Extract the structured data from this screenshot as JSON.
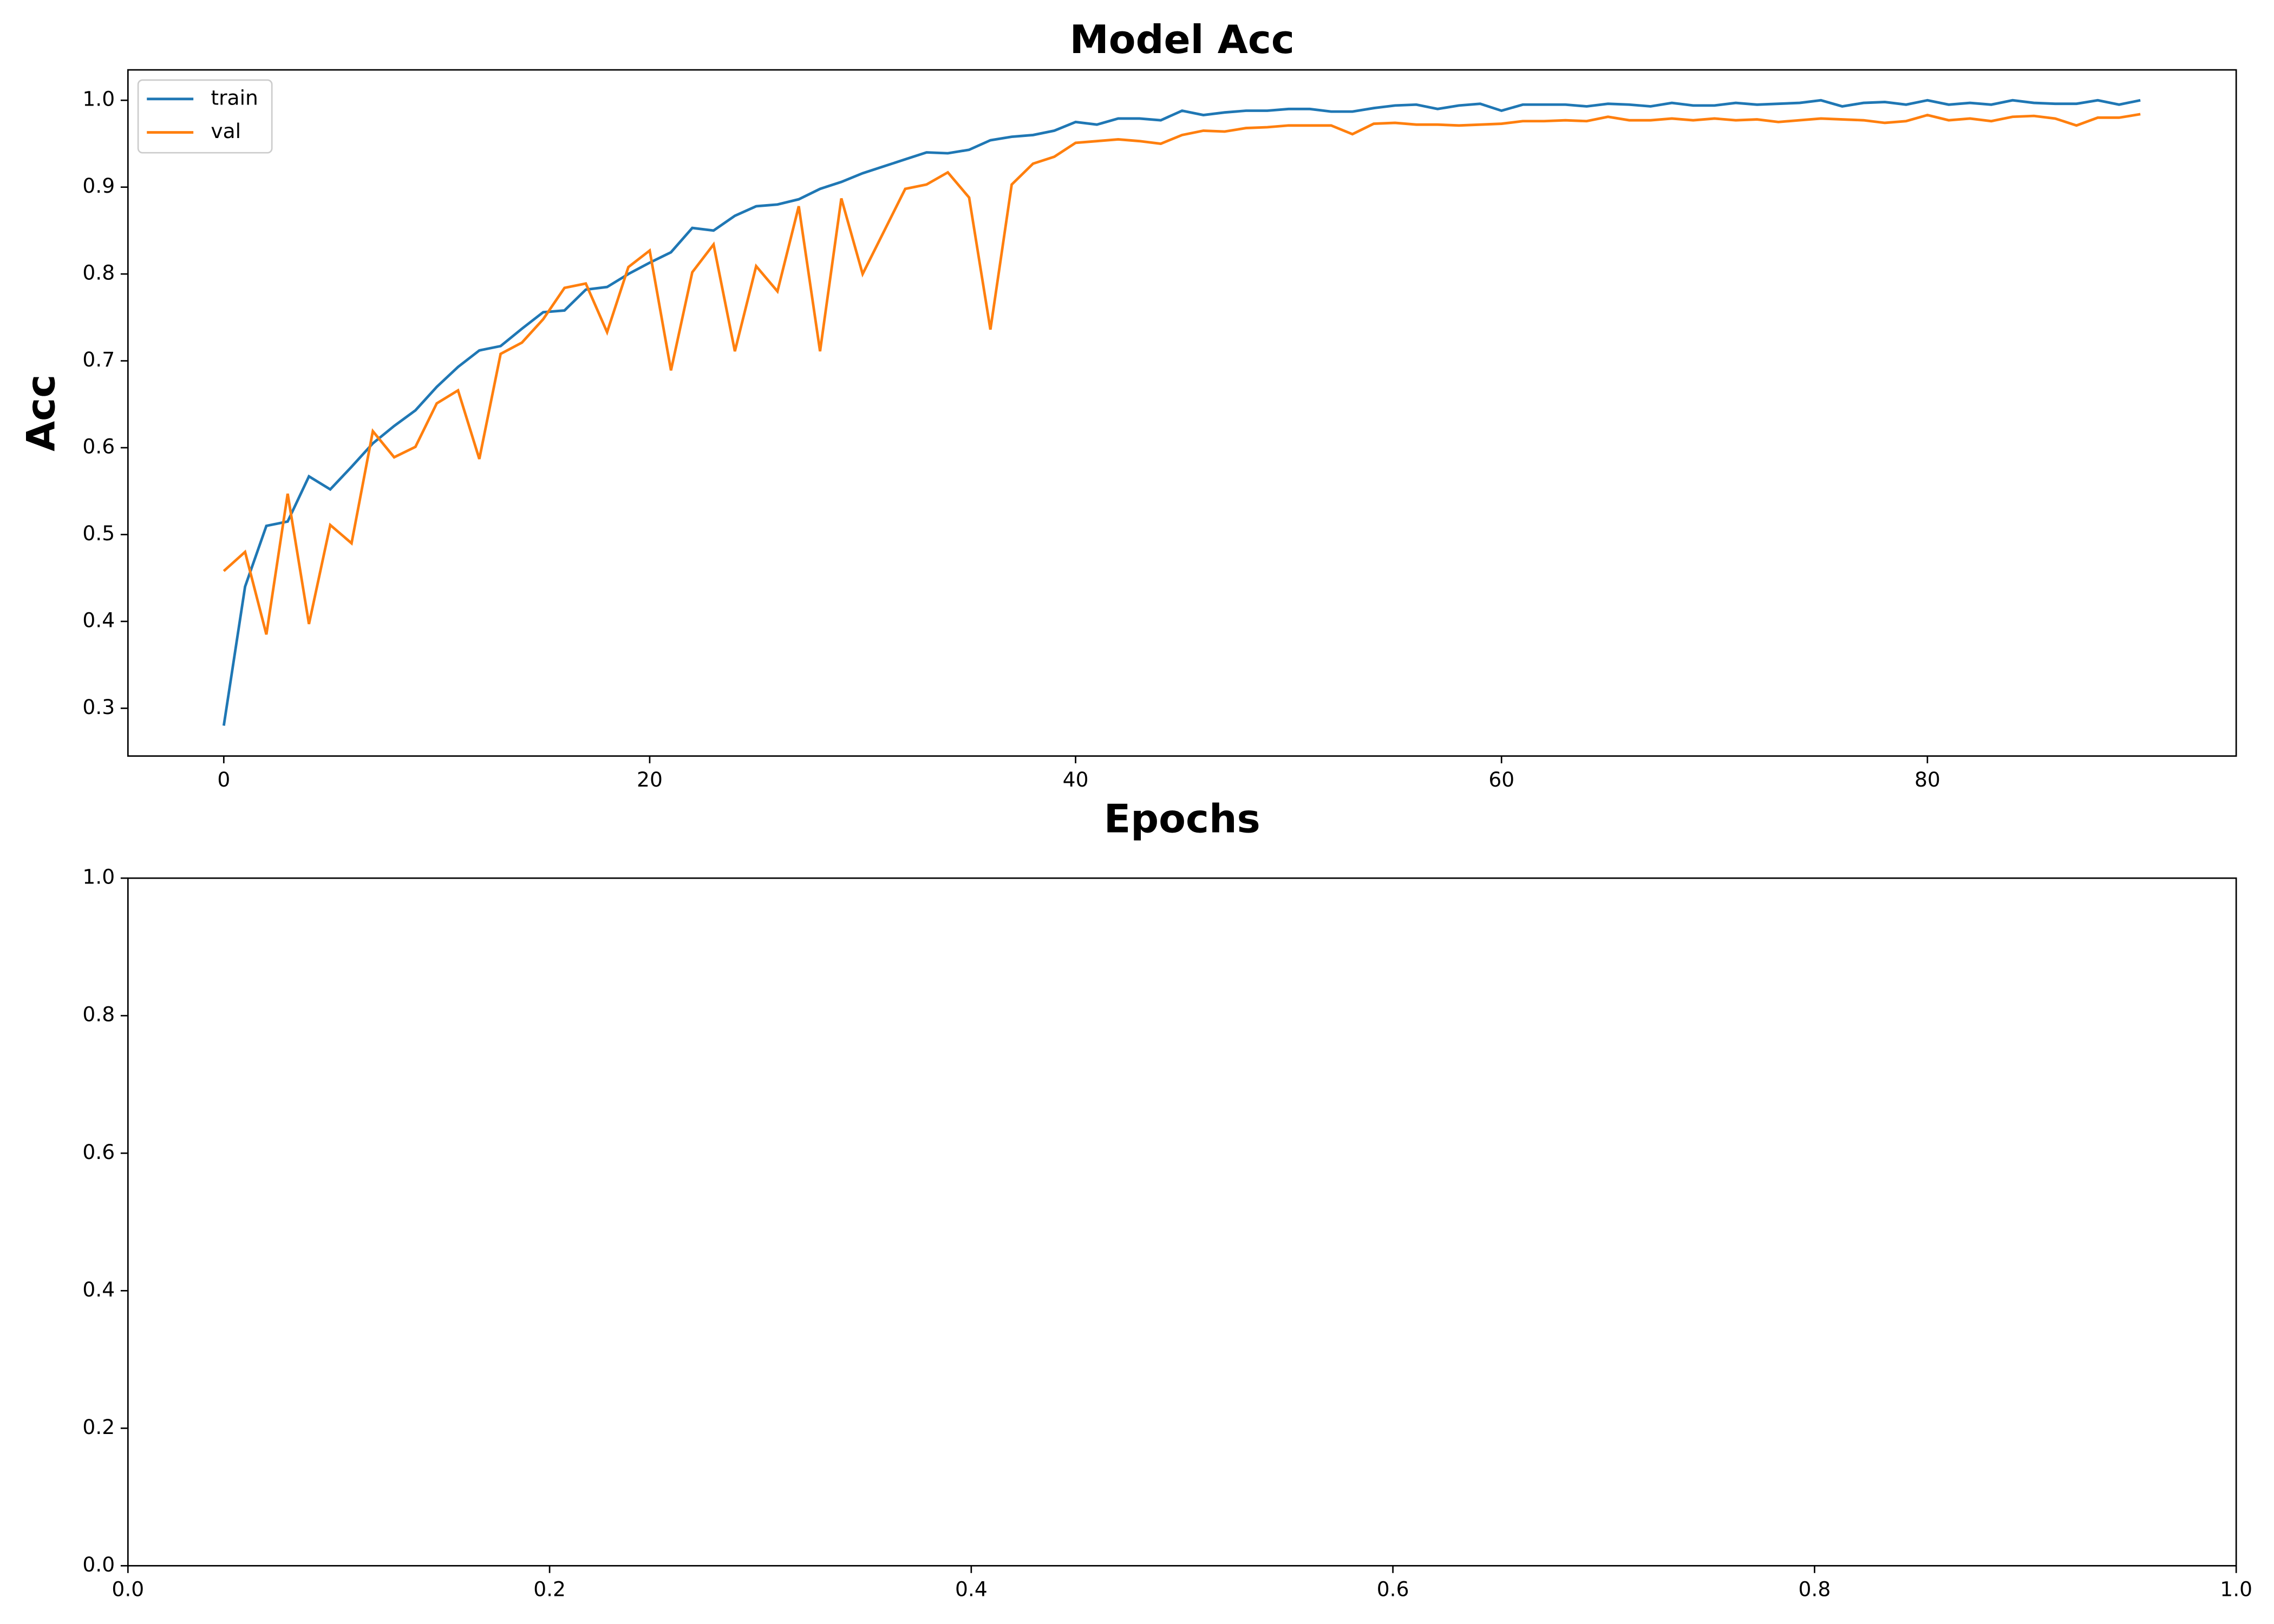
{
  "chart_data": [
    {
      "type": "line",
      "title": "Model Acc",
      "x_label": "Epochs",
      "y_label": "Acc",
      "x": [
        0,
        1,
        2,
        3,
        4,
        5,
        6,
        7,
        8,
        9,
        10,
        11,
        12,
        13,
        14,
        15,
        16,
        17,
        18,
        19,
        20,
        21,
        22,
        23,
        24,
        25,
        26,
        27,
        28,
        29,
        30,
        31,
        32,
        33,
        34,
        35,
        36,
        37,
        38,
        39,
        40,
        41,
        42,
        43,
        44,
        45,
        46,
        47,
        48,
        49,
        50,
        51,
        52,
        53,
        54,
        55,
        56,
        57,
        58,
        59,
        60,
        61,
        62,
        63,
        64,
        65,
        66,
        67,
        68,
        69,
        70,
        71,
        72,
        73,
        74,
        75,
        76,
        77,
        78,
        79,
        80,
        81,
        82,
        83,
        84,
        85,
        86,
        87,
        88,
        89,
        90
      ],
      "series": [
        {
          "name": "train",
          "color": "#1f77b4",
          "values": [
            0.28,
            0.44,
            0.51,
            0.515,
            0.567,
            0.552,
            0.578,
            0.605,
            0.625,
            0.643,
            0.67,
            0.693,
            0.712,
            0.717,
            0.737,
            0.756,
            0.758,
            0.782,
            0.785,
            0.8,
            0.813,
            0.825,
            0.853,
            0.85,
            0.867,
            0.878,
            0.88,
            0.886,
            0.898,
            0.906,
            0.916,
            0.924,
            0.932,
            0.94,
            0.939,
            0.943,
            0.954,
            0.958,
            0.96,
            0.965,
            0.975,
            0.972,
            0.979,
            0.979,
            0.977,
            0.988,
            0.983,
            0.986,
            0.988,
            0.988,
            0.99,
            0.99,
            0.987,
            0.987,
            0.991,
            0.994,
            0.995,
            0.99,
            0.994,
            0.996,
            0.988,
            0.995,
            0.995,
            0.995,
            0.993,
            0.996,
            0.995,
            0.993,
            0.997,
            0.994,
            0.994,
            0.997,
            0.995,
            0.996,
            0.997,
            1.0,
            0.993,
            0.997,
            0.998,
            0.995,
            1.0,
            0.995,
            0.997,
            0.995,
            1.0,
            0.997,
            0.996,
            0.996,
            1.0,
            0.995,
            1.0
          ]
        },
        {
          "name": "val",
          "color": "#ff7f0e",
          "values": [
            0.458,
            0.48,
            0.385,
            0.547,
            0.397,
            0.511,
            0.49,
            0.619,
            0.589,
            0.601,
            0.651,
            0.666,
            0.587,
            0.708,
            0.721,
            0.748,
            0.784,
            0.789,
            0.733,
            0.808,
            0.827,
            0.689,
            0.802,
            0.834,
            0.711,
            0.809,
            0.78,
            0.878,
            0.711,
            0.887,
            0.8,
            0.849,
            0.898,
            0.903,
            0.917,
            0.888,
            0.736,
            0.903,
            0.927,
            0.935,
            0.951,
            0.953,
            0.955,
            0.953,
            0.95,
            0.96,
            0.965,
            0.964,
            0.968,
            0.969,
            0.971,
            0.971,
            0.971,
            0.961,
            0.973,
            0.974,
            0.972,
            0.972,
            0.971,
            0.972,
            0.973,
            0.976,
            0.976,
            0.977,
            0.976,
            0.981,
            0.977,
            0.977,
            0.979,
            0.977,
            0.979,
            0.977,
            0.978,
            0.975,
            0.977,
            0.979,
            0.978,
            0.977,
            0.974,
            0.976,
            0.983,
            0.977,
            0.979,
            0.976,
            0.981,
            0.982,
            0.979,
            0.971,
            0.98,
            0.98,
            0.984
          ]
        }
      ],
      "xlim": [
        -4.5,
        94.5
      ],
      "xticks": [
        0,
        20,
        40,
        60,
        80
      ],
      "ylim": [
        0.245,
        1.035
      ],
      "yticks": [
        0.3,
        0.4,
        0.5,
        0.6,
        0.7,
        0.8,
        0.9,
        {
          "value": 1.0,
          "label": "1.0"
        }
      ],
      "legend": "upper left"
    },
    {
      "type": "line",
      "series": [],
      "xlim": [
        0,
        1
      ],
      "xticks": [
        {
          "value": 0,
          "label": "0.0"
        },
        0.2,
        0.4,
        0.6,
        0.8,
        {
          "value": 1,
          "label": "1.0"
        }
      ],
      "ylim": [
        0,
        1
      ],
      "yticks": [
        {
          "value": 0,
          "label": "0.0"
        },
        0.2,
        0.4,
        0.6,
        0.8,
        {
          "value": 1,
          "label": "1.0"
        }
      ]
    }
  ]
}
